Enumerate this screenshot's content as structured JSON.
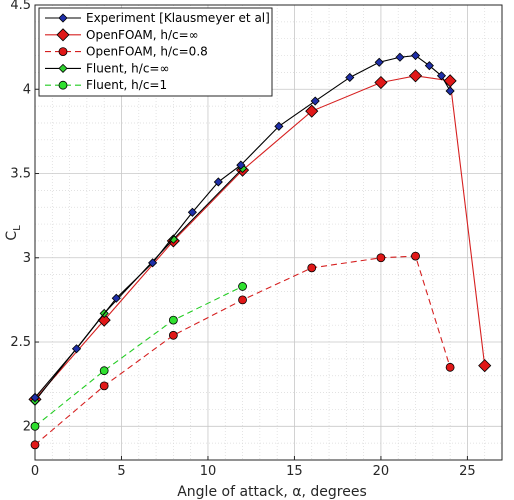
{
  "chart_data": {
    "type": "line",
    "xlabel": "Angle of attack, α, degrees",
    "ylabel_main": "C",
    "ylabel_sub": "L",
    "xlim": [
      0,
      27
    ],
    "ylim": [
      1.8,
      4.5
    ],
    "xticks": [
      0,
      5,
      10,
      15,
      20,
      25
    ],
    "yticks": [
      2,
      2.5,
      3,
      3.5,
      4,
      4.5
    ],
    "grid": true,
    "minor_grid": true,
    "legend_position": "top-left",
    "series": [
      {
        "name": "Experiment [Klausmeyer et al]",
        "color": "#000000",
        "marker_color": "#1f2fa8",
        "marker": "diamond",
        "dashed": false,
        "x": [
          0,
          2.4,
          4.7,
          6.8,
          9.1,
          10.6,
          11.9,
          14.1,
          16.2,
          18.2,
          19.9,
          21.1,
          22.0,
          22.8,
          23.5,
          24.0
        ],
        "y": [
          2.17,
          2.46,
          2.76,
          2.97,
          3.27,
          3.45,
          3.55,
          3.78,
          3.93,
          4.07,
          4.16,
          4.19,
          4.2,
          4.14,
          4.08,
          3.99
        ]
      },
      {
        "name": "OpenFOAM, h/c=∞",
        "color": "#d62020",
        "marker_color": "#e01818",
        "marker": "diamond-large",
        "dashed": false,
        "x": [
          0,
          4,
          8,
          12,
          16,
          20,
          22,
          24,
          26
        ],
        "y": [
          2.16,
          2.63,
          3.1,
          3.52,
          3.87,
          4.04,
          4.08,
          4.05,
          2.36
        ]
      },
      {
        "name": "OpenFOAM, h/c=0.8",
        "color": "#d62020",
        "marker_color": "#e01818",
        "marker": "circle",
        "dashed": true,
        "x": [
          0,
          4,
          8,
          12,
          16,
          20,
          22,
          24
        ],
        "y": [
          1.89,
          2.24,
          2.54,
          2.75,
          2.94,
          3.0,
          3.01,
          2.35
        ]
      },
      {
        "name": "Fluent, h/c=∞",
        "color": "#000000",
        "marker_color": "#2fd02f",
        "marker": "diamond",
        "dashed": false,
        "x": [
          0,
          4,
          8,
          12
        ],
        "y": [
          2.15,
          2.67,
          3.11,
          3.53
        ]
      },
      {
        "name": "Fluent, h/c=1",
        "color": "#22cc22",
        "marker_color": "#2fe02f",
        "marker": "circle",
        "dashed": true,
        "x": [
          0,
          4,
          8,
          12
        ],
        "y": [
          2.0,
          2.33,
          2.63,
          2.83
        ]
      }
    ]
  }
}
